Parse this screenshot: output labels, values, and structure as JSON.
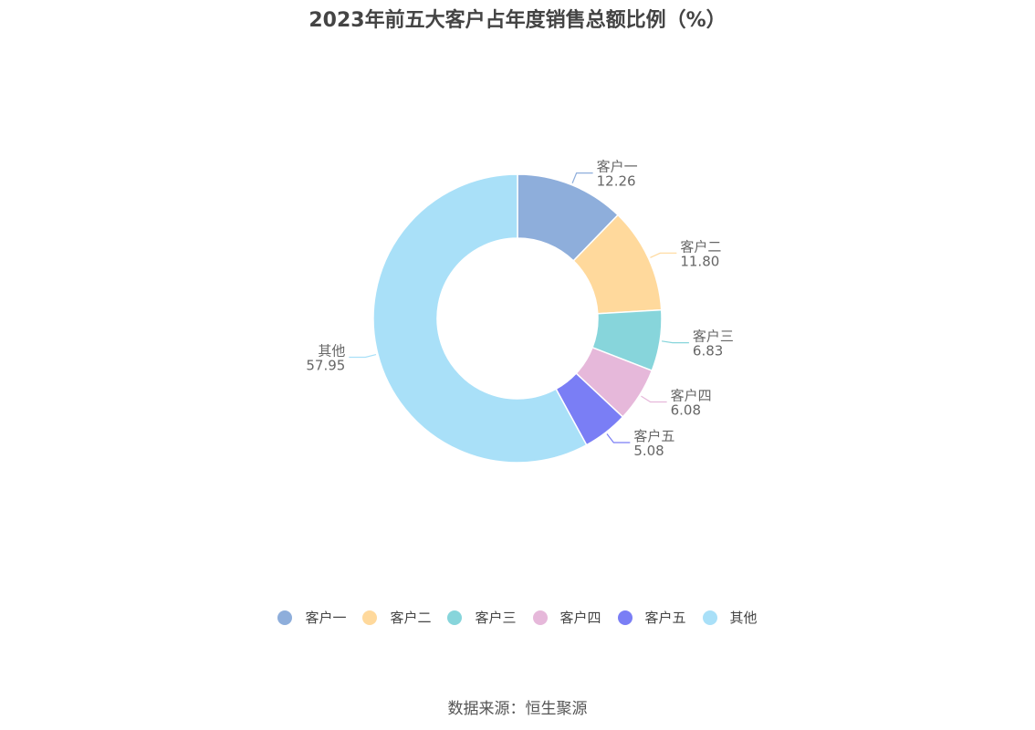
{
  "chart_data": {
    "type": "pie",
    "title": "2023年前五大客户占年度销售总额比例（%）",
    "slices": [
      {
        "label": "客户一",
        "value": 12.26,
        "value_text": "12.26",
        "color": "#8eaedb"
      },
      {
        "label": "客户二",
        "value": 11.8,
        "value_text": "11.80",
        "color": "#ffd99c"
      },
      {
        "label": "客户三",
        "value": 6.83,
        "value_text": "6.83",
        "color": "#87d5db"
      },
      {
        "label": "客户四",
        "value": 6.08,
        "value_text": "6.08",
        "color": "#e6b8da"
      },
      {
        "label": "客户五",
        "value": 5.08,
        "value_text": "5.08",
        "color": "#7a7ef5"
      },
      {
        "label": "其他",
        "value": 57.95,
        "value_text": "57.95",
        "color": "#a9e0f8"
      }
    ],
    "legend_position": "bottom",
    "donut": true
  },
  "footer": {
    "source": "数据来源：恒生聚源"
  }
}
